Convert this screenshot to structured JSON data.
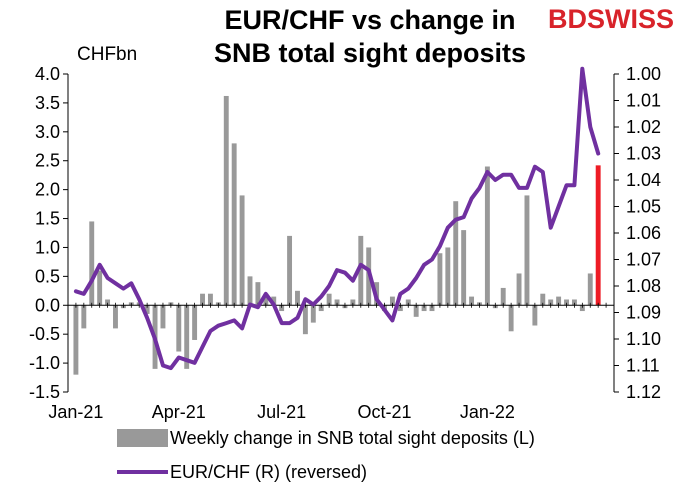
{
  "title_line1": "EUR/CHF vs change in",
  "title_line2": "SNB total sight deposits",
  "logo": {
    "part1": "BD",
    "part2": "SWISS"
  },
  "unit_label": "CHFbn",
  "colors": {
    "bars": "#999999",
    "highlight_bar": "#ee1c25",
    "line": "#7030a0",
    "logo": "#d8232a"
  },
  "chart_data": {
    "type": "bar",
    "title": "EUR/CHF vs change in SNB total sight deposits",
    "ylabel": "CHFbn",
    "ylim": [
      -1.5,
      4.0
    ],
    "y_ticks": [
      "4.0",
      "3.5",
      "3.0",
      "2.5",
      "2.0",
      "1.5",
      "1.0",
      "0.5",
      "0.0",
      "-0.5",
      "-1.0",
      "-1.5"
    ],
    "y2lim": [
      1.0,
      1.12
    ],
    "y2_reversed": true,
    "y2_ticks": [
      "1.00",
      "1.01",
      "1.02",
      "1.03",
      "1.04",
      "1.05",
      "1.06",
      "1.07",
      "1.08",
      "1.09",
      "1.10",
      "1.11",
      "1.12"
    ],
    "x_ticks": [
      {
        "label": "Jan-21",
        "week": 0
      },
      {
        "label": "Apr-21",
        "week": 13
      },
      {
        "label": "Jul-21",
        "week": 26
      },
      {
        "label": "Oct-21",
        "week": 39
      },
      {
        "label": "Jan-22",
        "week": 52
      }
    ],
    "legend_position": "bottom",
    "series": [
      {
        "name": "Weekly change in SNB total sight deposits (L)",
        "kind": "bar",
        "values": [
          -1.2,
          -0.4,
          1.45,
          0.6,
          0.1,
          -0.4,
          -0.05,
          0.05,
          0.05,
          -0.15,
          -1.1,
          -0.4,
          0.05,
          -0.8,
          -1.1,
          -0.6,
          0.2,
          0.2,
          0.05,
          3.62,
          2.8,
          1.9,
          0.5,
          0.4,
          0.2,
          0.15,
          -0.1,
          1.2,
          0.25,
          -0.5,
          -0.3,
          -0.1,
          0.2,
          0.1,
          -0.05,
          0.1,
          1.2,
          1.0,
          0.4,
          -0.1,
          0.15,
          -0.1,
          0.1,
          -0.2,
          -0.1,
          -0.1,
          0.9,
          1.0,
          1.8,
          1.3,
          0.15,
          0.05,
          2.4,
          -0.05,
          0.3,
          -0.45,
          0.55,
          1.9,
          -0.35,
          0.2,
          0.1,
          0.15,
          0.1,
          0.1,
          -0.1,
          0.55,
          2.42
        ]
      },
      {
        "name": "EUR/CHF (R) (reversed)",
        "kind": "line",
        "values": [
          1.082,
          1.083,
          1.078,
          1.072,
          1.077,
          1.079,
          1.081,
          1.079,
          1.085,
          1.092,
          1.1,
          1.11,
          1.111,
          1.107,
          1.108,
          1.109,
          1.103,
          1.097,
          1.095,
          1.094,
          1.093,
          1.096,
          1.087,
          1.088,
          1.083,
          1.087,
          1.094,
          1.094,
          1.092,
          1.085,
          1.087,
          1.084,
          1.08,
          1.074,
          1.075,
          1.078,
          1.072,
          1.074,
          1.085,
          1.089,
          1.093,
          1.083,
          1.081,
          1.077,
          1.072,
          1.07,
          1.065,
          1.058,
          1.055,
          1.054,
          1.047,
          1.043,
          1.037,
          1.04,
          1.038,
          1.038,
          1.043,
          1.043,
          1.035,
          1.037,
          1.058,
          1.05,
          1.042,
          1.042,
          0.998,
          1.02,
          1.03
        ]
      }
    ],
    "highlight_bar_index": 66
  }
}
